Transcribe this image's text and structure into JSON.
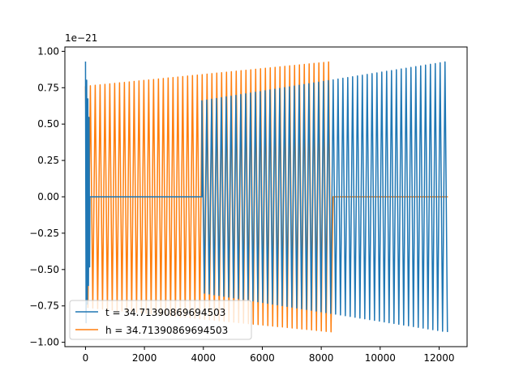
{
  "chart_data": {
    "type": "line",
    "title": "",
    "xlabel": "",
    "ylabel": "",
    "offset_label": "1e−21",
    "xlim": [
      -700,
      12950
    ],
    "ylim": [
      -1.03,
      1.03
    ],
    "grid": false,
    "legend_position": "lower-left",
    "x_ticks": [
      0,
      2000,
      4000,
      6000,
      8000,
      10000,
      12000
    ],
    "x_tick_labels": [
      "0",
      "2000",
      "4000",
      "6000",
      "8000",
      "10000",
      "12000"
    ],
    "y_ticks": [
      1.0,
      0.75,
      0.5,
      0.25,
      0.0,
      -0.25,
      -0.5,
      -0.75,
      -1.0
    ],
    "y_tick_labels": [
      "1.00",
      "0.75",
      "0.50",
      "0.25",
      "0.00",
      "−0.25",
      "−0.50",
      "−0.75",
      "−1.00"
    ],
    "series": [
      {
        "name": "t = 34.71390869694503",
        "color": "#1f77b4",
        "description": "oscillating signal",
        "x_range": [
          0,
          12300
        ],
        "segments": [
          {
            "x_start": 0,
            "x_end": 150,
            "amplitude_start": 0.93,
            "amplitude_end": 0.45
          },
          {
            "x_start": 150,
            "x_end": 3950,
            "amplitude_start": 0.0,
            "amplitude_end": 0.0
          },
          {
            "x_start": 3950,
            "x_end": 12300,
            "amplitude_start": 0.66,
            "amplitude_end": 0.93,
            "period": 165
          }
        ]
      },
      {
        "name": "h = 34.71390869694503",
        "color": "#ff7f0e",
        "x_range": [
          0,
          12300
        ],
        "segments": [
          {
            "x_start": 0,
            "x_end": 8400,
            "amplitude_start": 0.76,
            "amplitude_end": 0.93,
            "period": 165
          },
          {
            "x_start": 8400,
            "x_end": 12300,
            "amplitude_start": 0.0,
            "amplitude_end": 0.0
          }
        ]
      }
    ]
  }
}
